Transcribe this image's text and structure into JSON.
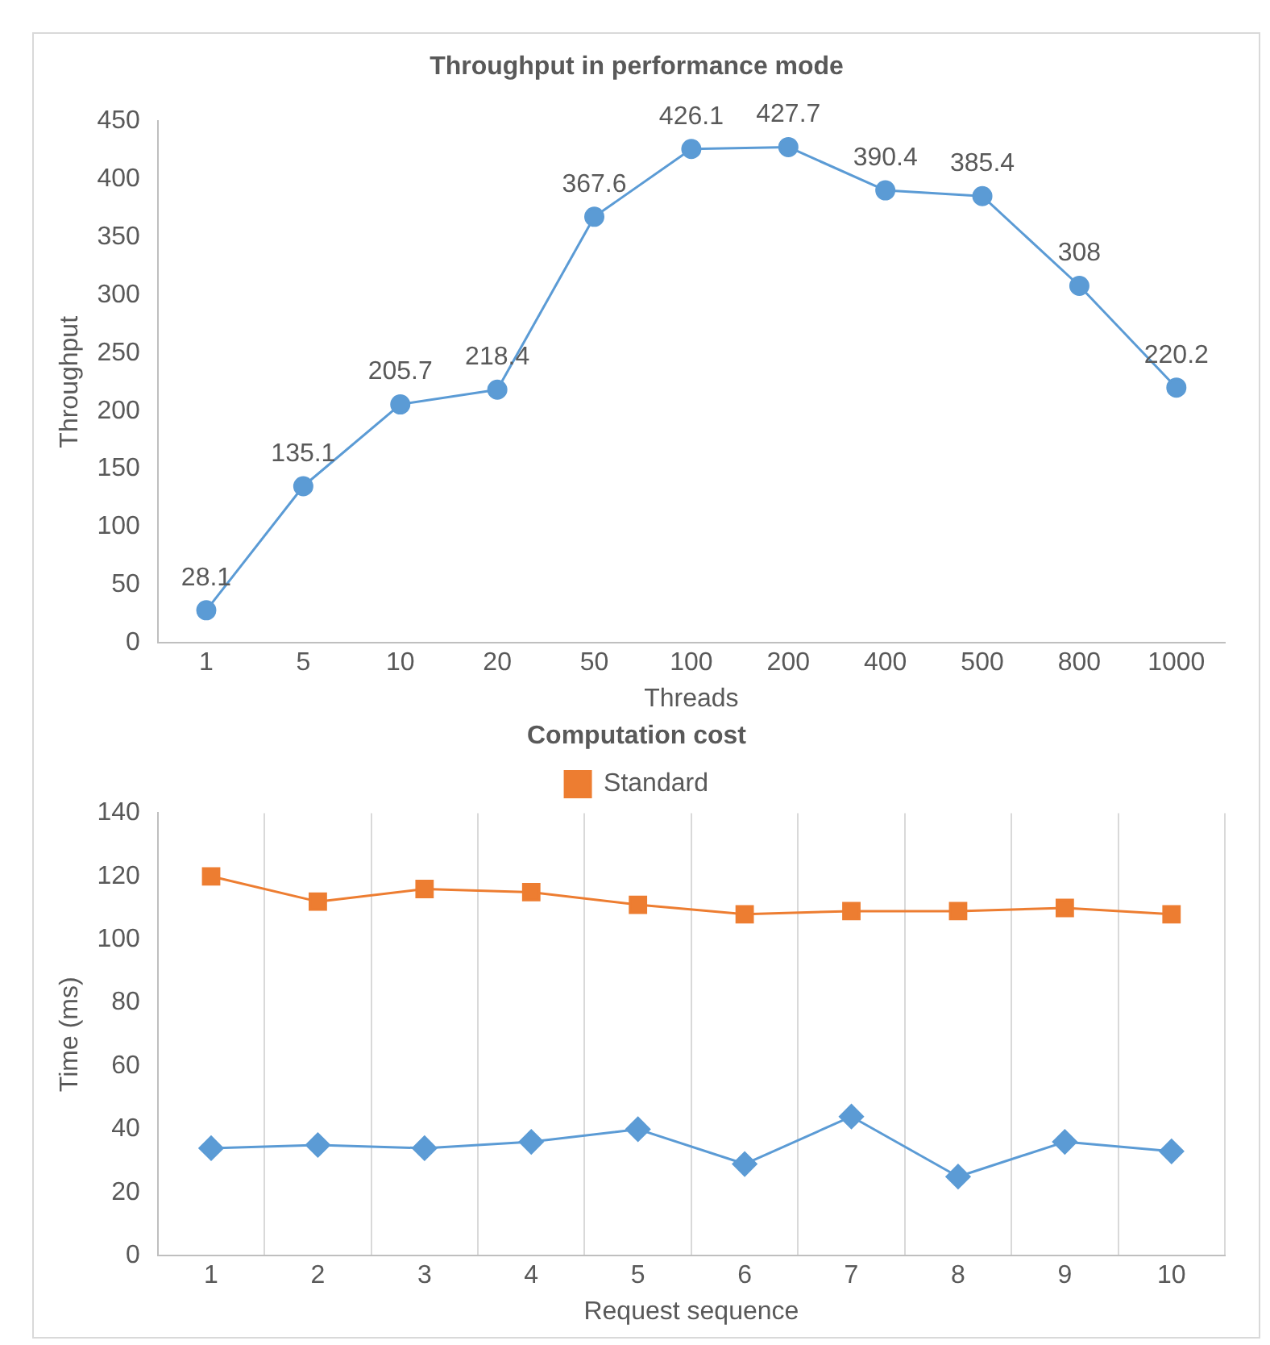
{
  "chart_data": [
    {
      "type": "line",
      "title": "Throughput in performance mode",
      "xlabel": "Threads",
      "ylabel": "Throughput",
      "categories": [
        "1",
        "5",
        "10",
        "20",
        "50",
        "100",
        "200",
        "400",
        "500",
        "800",
        "1000"
      ],
      "series": [
        {
          "color": "#5b9bd5",
          "values": [
            28.1,
            135.1,
            205.7,
            218.4,
            367.6,
            426.1,
            427.7,
            390.4,
            385.4,
            308,
            220.2
          ]
        }
      ],
      "ylim": [
        0,
        450
      ],
      "yticks": [
        0,
        50,
        100,
        150,
        200,
        250,
        300,
        350,
        400,
        450
      ],
      "grid": false,
      "legend": false,
      "marker": "circle",
      "data_labels": true
    },
    {
      "type": "line",
      "title": "Computation cost",
      "xlabel": "Request sequence",
      "ylabel": "Time (ms)",
      "categories": [
        "1",
        "2",
        "3",
        "4",
        "5",
        "6",
        "7",
        "8",
        "9",
        "10"
      ],
      "series": [
        {
          "color": "#5b9bd5",
          "marker": "diamond",
          "values": [
            34,
            35,
            34,
            36,
            40,
            29,
            44,
            25,
            36,
            33
          ]
        },
        {
          "name": "Standard",
          "color": "#ed7d31",
          "marker": "square",
          "values": [
            120,
            112,
            116,
            115,
            111,
            108,
            109,
            109,
            110,
            108
          ]
        }
      ],
      "ylim": [
        0,
        140
      ],
      "yticks": [
        0,
        20,
        40,
        60,
        80,
        100,
        120,
        140
      ],
      "grid": "x",
      "legend": "top"
    }
  ]
}
